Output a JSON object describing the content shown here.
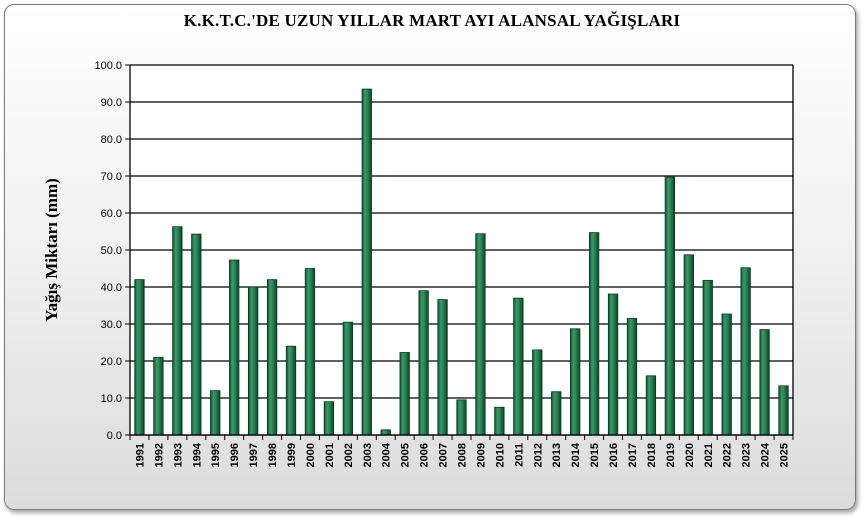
{
  "chart_data": {
    "type": "bar",
    "title": "K.K.T.C.'DE UZUN YILLAR MART AYI ALANSAL YAĞIŞLARI",
    "ylabel": "Yağış Miktarı (mm)",
    "xlabel": "",
    "ylim": [
      0,
      100
    ],
    "yticks": [
      "0.0",
      "10.0",
      "20.0",
      "30.0",
      "40.0",
      "50.0",
      "60.0",
      "70.0",
      "80.0",
      "90.0",
      "100.0"
    ],
    "grid": true,
    "legend": "none",
    "bar_color": "#1f7a4c",
    "categories": [
      "1991",
      "1992",
      "1993",
      "1994",
      "1995",
      "1996",
      "1997",
      "1998",
      "1999",
      "2000",
      "2001",
      "2002",
      "2003",
      "2004",
      "2005",
      "2006",
      "2007",
      "2008",
      "2009",
      "2010",
      "2011",
      "2012",
      "2013",
      "2014",
      "2015",
      "2016",
      "2017",
      "2018",
      "2019",
      "2020",
      "2021",
      "2022",
      "2023",
      "2024",
      "2025"
    ],
    "values": [
      42.0,
      21.0,
      56.3,
      54.3,
      12.0,
      47.3,
      40.0,
      42.0,
      24.0,
      45.0,
      9.0,
      30.5,
      93.5,
      1.4,
      22.3,
      39.0,
      36.6,
      9.5,
      54.4,
      7.5,
      37.0,
      23.0,
      11.7,
      28.7,
      54.7,
      38.1,
      31.5,
      16.0,
      69.7,
      48.7,
      41.8,
      32.7,
      45.2,
      28.5,
      13.3
    ]
  }
}
